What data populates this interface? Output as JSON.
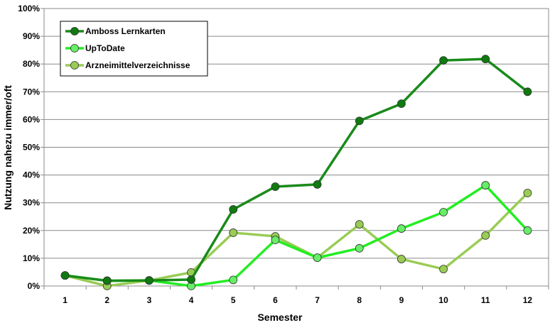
{
  "chart_data": {
    "type": "line",
    "title": "",
    "xlabel": "Semester",
    "ylabel": "Nutzung nahezu immer/oft",
    "categories": [
      "1",
      "2",
      "3",
      "4",
      "5",
      "6",
      "7",
      "8",
      "9",
      "10",
      "11",
      "12"
    ],
    "ylim": [
      0,
      100
    ],
    "yticks": [
      "0%",
      "10%",
      "20%",
      "30%",
      "40%",
      "50%",
      "60%",
      "70%",
      "80%",
      "90%",
      "100%"
    ],
    "grid": true,
    "legend_position": "top-left",
    "series": [
      {
        "name": "Amboss Lernkarten",
        "color": "#1a8a1a",
        "marker": "#0f7a0f",
        "values": [
          3.8,
          1.9,
          2.0,
          2.3,
          27.6,
          35.8,
          36.6,
          59.5,
          65.7,
          81.3,
          81.8,
          70.0
        ]
      },
      {
        "name": "UpToDate",
        "color": "#22ee22",
        "marker": "#66ee66",
        "values": [
          3.8,
          1.9,
          2.0,
          0.0,
          2.2,
          16.6,
          10.2,
          13.6,
          20.7,
          26.6,
          36.3,
          20.0
        ]
      },
      {
        "name": "Arzneimittelverzeichnisse",
        "color": "#99cc55",
        "marker": "#99cc55",
        "values": [
          3.8,
          0.0,
          2.0,
          4.9,
          19.2,
          17.9,
          10.2,
          22.2,
          9.7,
          6.1,
          18.2,
          33.5
        ]
      }
    ]
  }
}
